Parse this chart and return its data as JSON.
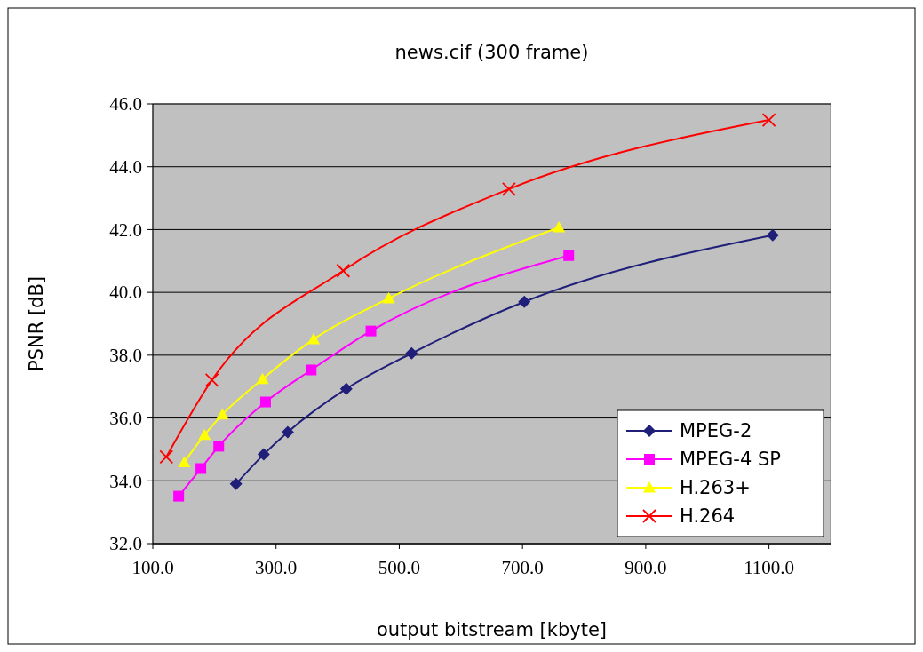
{
  "chart_data": {
    "type": "line",
    "title": "news.cif (300 frame)",
    "xlabel": "output bitstream [kbyte]",
    "ylabel": "PSNR [dB]",
    "xlim": [
      100,
      1200
    ],
    "ylim": [
      32,
      46
    ],
    "xticks": [
      {
        "value": 100,
        "label": "100.0"
      },
      {
        "value": 300,
        "label": "300.0"
      },
      {
        "value": 500,
        "label": "500.0"
      },
      {
        "value": 700,
        "label": "700.0"
      },
      {
        "value": 900,
        "label": "900.0"
      },
      {
        "value": 1100,
        "label": "1100.0"
      }
    ],
    "yticks": [
      {
        "value": 32,
        "label": "32.0"
      },
      {
        "value": 34,
        "label": "34.0"
      },
      {
        "value": 36,
        "label": "36.0"
      },
      {
        "value": 38,
        "label": "38.0"
      },
      {
        "value": 40,
        "label": "40.0"
      },
      {
        "value": 42,
        "label": "42.0"
      },
      {
        "value": 44,
        "label": "44.0"
      },
      {
        "value": 46,
        "label": "46.0"
      }
    ],
    "grid": "y",
    "legend": "bottom right",
    "series": [
      {
        "name": "MPEG-2",
        "color": "#1f1f7a",
        "marker": "diamond",
        "x": [
          235,
          280,
          319,
          414,
          520,
          703,
          1106
        ],
        "values": [
          33.9,
          34.84,
          35.55,
          36.93,
          38.06,
          39.7,
          41.82
        ]
      },
      {
        "name": "MPEG-4 SP",
        "color": "#ff00ff",
        "marker": "square",
        "x": [
          142,
          178,
          207,
          283,
          357,
          454,
          775
        ],
        "values": [
          33.51,
          34.39,
          35.1,
          36.51,
          37.53,
          38.77,
          41.17
        ]
      },
      {
        "name": "H.263+",
        "color": "#ffff00",
        "marker": "triangle",
        "x": [
          151,
          184,
          213,
          278,
          361,
          483,
          759
        ],
        "values": [
          34.59,
          35.46,
          36.11,
          37.24,
          38.51,
          39.81,
          42.07
        ]
      },
      {
        "name": "H.264",
        "color": "#ff0000",
        "marker": "cross",
        "x": [
          122,
          196,
          409,
          678,
          1100
        ],
        "values": [
          34.76,
          37.21,
          40.69,
          43.29,
          45.49
        ]
      }
    ]
  }
}
